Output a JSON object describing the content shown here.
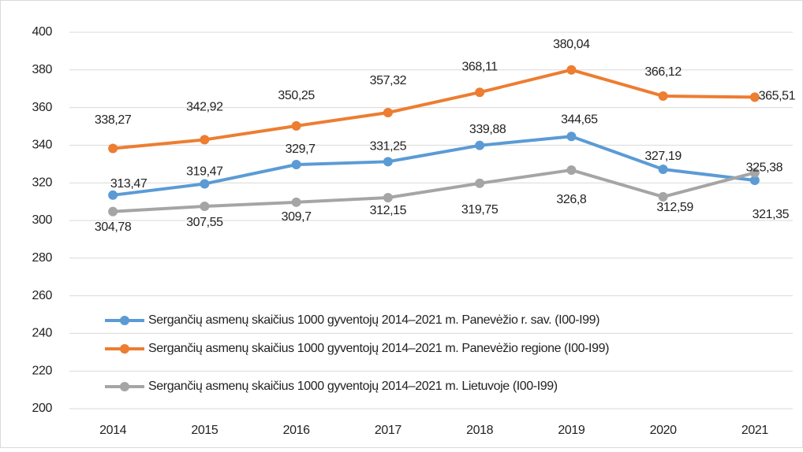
{
  "chart_data": {
    "type": "line",
    "categories": [
      "2014",
      "2015",
      "2016",
      "2017",
      "2018",
      "2019",
      "2020",
      "2021"
    ],
    "series": [
      {
        "name": "Sergančių asmenų skaičius 1000 gyventojų 2014–2021 m. Panevėžio r. sav.  (I00-I99)",
        "color": "#5b9bd5",
        "values": [
          313.47,
          319.47,
          329.7,
          331.25,
          339.88,
          344.65,
          327.19,
          321.35
        ],
        "value_labels": [
          "313,47",
          "319,47",
          "329,7",
          "331,25",
          "339,88",
          "344,65",
          "327,19",
          "321,35"
        ]
      },
      {
        "name": "Sergančių asmenų skaičius 1000 gyventojų 2014–2021 m. Panevėžio regione (I00-I99)",
        "color": "#ed7d31",
        "values": [
          338.27,
          342.92,
          350.25,
          357.32,
          368.11,
          380.04,
          366.12,
          365.51
        ],
        "value_labels": [
          "338,27",
          "342,92",
          "350,25",
          "357,32",
          "368,11",
          "380,04",
          "366,12",
          "365,51"
        ]
      },
      {
        "name": "Sergančių asmenų skaičius 1000 gyventojų 2014–2021 m. Lietuvoje (I00-I99)",
        "color": "#a5a5a5",
        "values": [
          304.78,
          307.55,
          309.7,
          312.15,
          319.75,
          326.8,
          312.59,
          325.38
        ],
        "value_labels": [
          "304,78",
          "307,55",
          "309,7",
          "312,15",
          "319,75",
          "326,8",
          "312,59",
          "325,38"
        ]
      }
    ],
    "ylim": [
      200,
      400
    ],
    "yticks": [
      200,
      220,
      240,
      260,
      280,
      300,
      320,
      340,
      360,
      380,
      400
    ],
    "grid": true,
    "legend": "bottom"
  }
}
